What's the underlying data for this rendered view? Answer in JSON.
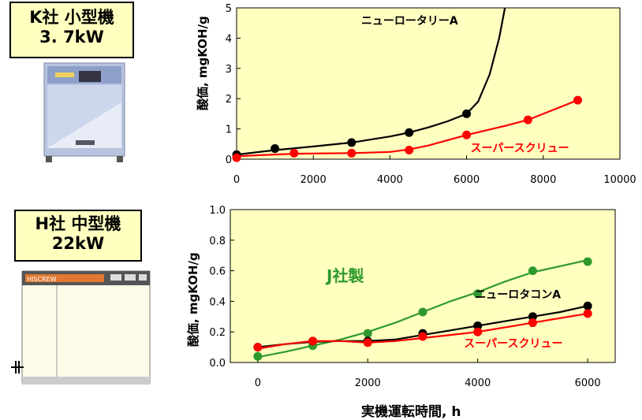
{
  "labels": {
    "top_line1": "K社  小型機",
    "top_line2": "3. 7kW",
    "bottom_line1": "H社  中型機",
    "bottom_line2": "22kW",
    "product_plate": "HISCREW"
  },
  "chart_data": [
    {
      "type": "line",
      "title": "",
      "xlabel": "",
      "ylabel": "酸価, mgKOH/g",
      "xlim": [
        0,
        10000
      ],
      "ylim": [
        0,
        5
      ],
      "x_ticks": [
        "0",
        "2000",
        "4000",
        "6000",
        "8000",
        "10000"
      ],
      "y_ticks": [
        "0",
        "1",
        "2",
        "3",
        "4",
        "5"
      ],
      "grid": false,
      "background": "#ffffc0",
      "series": [
        {
          "name": "ニューロータリーA",
          "color": "#000000",
          "x": [
            0,
            1000,
            3000,
            4500,
            6000
          ],
          "values": [
            0.15,
            0.35,
            0.55,
            0.88,
            1.5
          ],
          "curve_x": [
            0,
            1000,
            2000,
            3000,
            4000,
            4500,
            5000,
            5500,
            6000,
            6300,
            6600,
            6850,
            7000
          ],
          "curve_y": [
            0.15,
            0.3,
            0.42,
            0.55,
            0.75,
            0.88,
            1.05,
            1.25,
            1.5,
            1.9,
            2.8,
            4.0,
            5.0
          ]
        },
        {
          "name": "スーパースクリュー",
          "color": "#ff0000",
          "x": [
            0,
            1500,
            3000,
            4500,
            6000,
            7600,
            8900
          ],
          "values": [
            0.05,
            0.2,
            0.2,
            0.3,
            0.8,
            1.3,
            1.95
          ],
          "curve_x": [
            0,
            1500,
            3000,
            4000,
            4500,
            5000,
            6000,
            7000,
            7600,
            8900
          ],
          "curve_y": [
            0.1,
            0.18,
            0.2,
            0.24,
            0.32,
            0.45,
            0.8,
            1.1,
            1.3,
            1.95
          ]
        }
      ]
    },
    {
      "type": "line",
      "title": "",
      "xlabel": "実機運転時間,  h",
      "ylabel": "酸価, mgKOH/g",
      "xlim": [
        -500,
        6500
      ],
      "ylim": [
        0,
        1.0
      ],
      "x_ticks": [
        "0",
        "2000",
        "4000",
        "6000"
      ],
      "y_ticks": [
        "0.0",
        "0.2",
        "0.4",
        "0.6",
        "0.8",
        "1.0"
      ],
      "grid": false,
      "background": "#ffffc0",
      "series": [
        {
          "name": "J社製",
          "color": "#2e9a2e",
          "x": [
            0,
            1000,
            2000,
            3000,
            4000,
            5000,
            6000
          ],
          "values": [
            0.04,
            0.11,
            0.19,
            0.33,
            0.45,
            0.6,
            0.66
          ],
          "curve_x": [
            0,
            500,
            1000,
            1500,
            2000,
            2500,
            3000,
            3500,
            4000,
            4500,
            5000,
            5500,
            6000
          ],
          "curve_y": [
            0.035,
            0.07,
            0.11,
            0.15,
            0.2,
            0.26,
            0.33,
            0.4,
            0.46,
            0.53,
            0.59,
            0.63,
            0.67
          ]
        },
        {
          "name": "ニューロタコンA",
          "color": "#000000",
          "x": [
            0,
            1000,
            2000,
            3000,
            4000,
            5000,
            6000
          ],
          "values": [
            0.1,
            0.14,
            0.14,
            0.19,
            0.24,
            0.3,
            0.37
          ],
          "curve_x": [
            0,
            500,
            1000,
            1500,
            2000,
            2500,
            3000,
            3500,
            4000,
            4500,
            5000,
            5500,
            6000
          ],
          "curve_y": [
            0.1,
            0.12,
            0.135,
            0.14,
            0.14,
            0.15,
            0.18,
            0.21,
            0.24,
            0.27,
            0.3,
            0.33,
            0.37
          ]
        },
        {
          "name": "スーパースクリュー",
          "color": "#ff0000",
          "x": [
            0,
            1000,
            2000,
            3000,
            4000,
            5000,
            6000
          ],
          "values": [
            0.1,
            0.14,
            0.13,
            0.17,
            0.2,
            0.26,
            0.32
          ],
          "curve_x": [
            0,
            500,
            1000,
            1500,
            2000,
            2500,
            3000,
            3500,
            4000,
            4500,
            5000,
            5500,
            6000
          ],
          "curve_y": [
            0.09,
            0.12,
            0.14,
            0.14,
            0.13,
            0.14,
            0.16,
            0.18,
            0.2,
            0.23,
            0.26,
            0.29,
            0.32
          ]
        }
      ]
    }
  ]
}
